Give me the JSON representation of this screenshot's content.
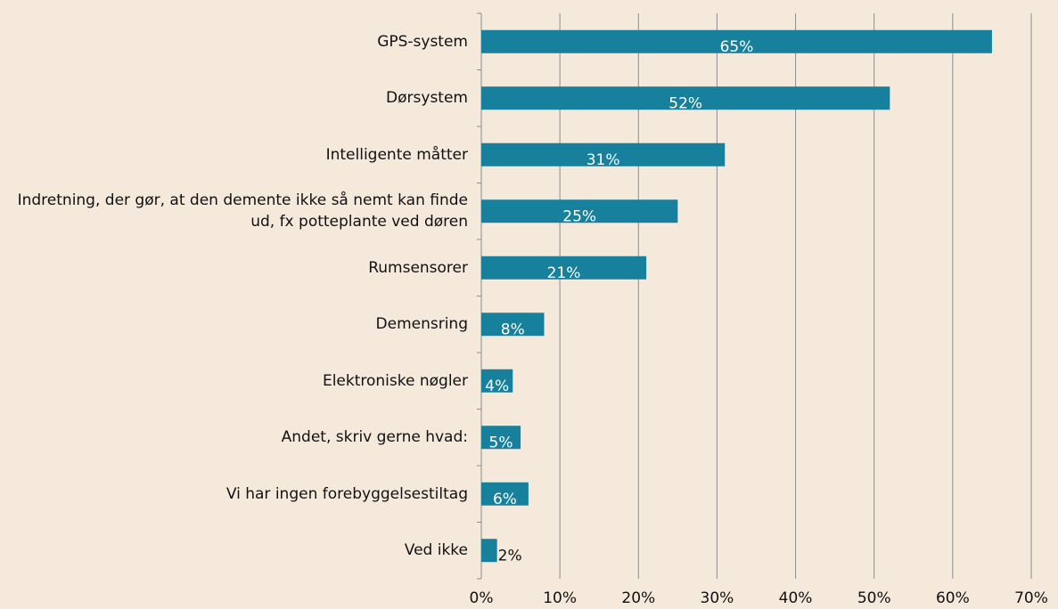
{
  "chart_data": {
    "type": "bar",
    "orientation": "horizontal",
    "categories": [
      "GPS-system",
      "Dørsystem",
      "Intelligente måtter",
      "Indretning, der gør, at den demente ikke så nemt kan finde ud, fx potteplante ved døren",
      "Rumsensorer",
      "Demensring",
      "Elektroniske nøgler",
      "Andet, skriv gerne hvad:",
      "Vi har ingen forebyggelsestiltag",
      "Ved ikke"
    ],
    "values": [
      65,
      52,
      31,
      25,
      21,
      8,
      4,
      5,
      6,
      2
    ],
    "value_labels": [
      "65%",
      "52%",
      "31%",
      "25%",
      "21%",
      "8%",
      "4%",
      "5%",
      "6%",
      "2%"
    ],
    "color": "#17809c",
    "xlim": [
      0,
      70
    ],
    "xticks": [
      {
        "value": 0,
        "label": "0%"
      },
      {
        "value": 10,
        "label": "10%"
      },
      {
        "value": 20,
        "label": "20%"
      },
      {
        "value": 30,
        "label": "30%"
      },
      {
        "value": 40,
        "label": "40%"
      },
      {
        "value": 50,
        "label": "50%"
      },
      {
        "value": 60,
        "label": "60%"
      },
      {
        "value": 70,
        "label": "70%"
      }
    ],
    "grid": true
  }
}
